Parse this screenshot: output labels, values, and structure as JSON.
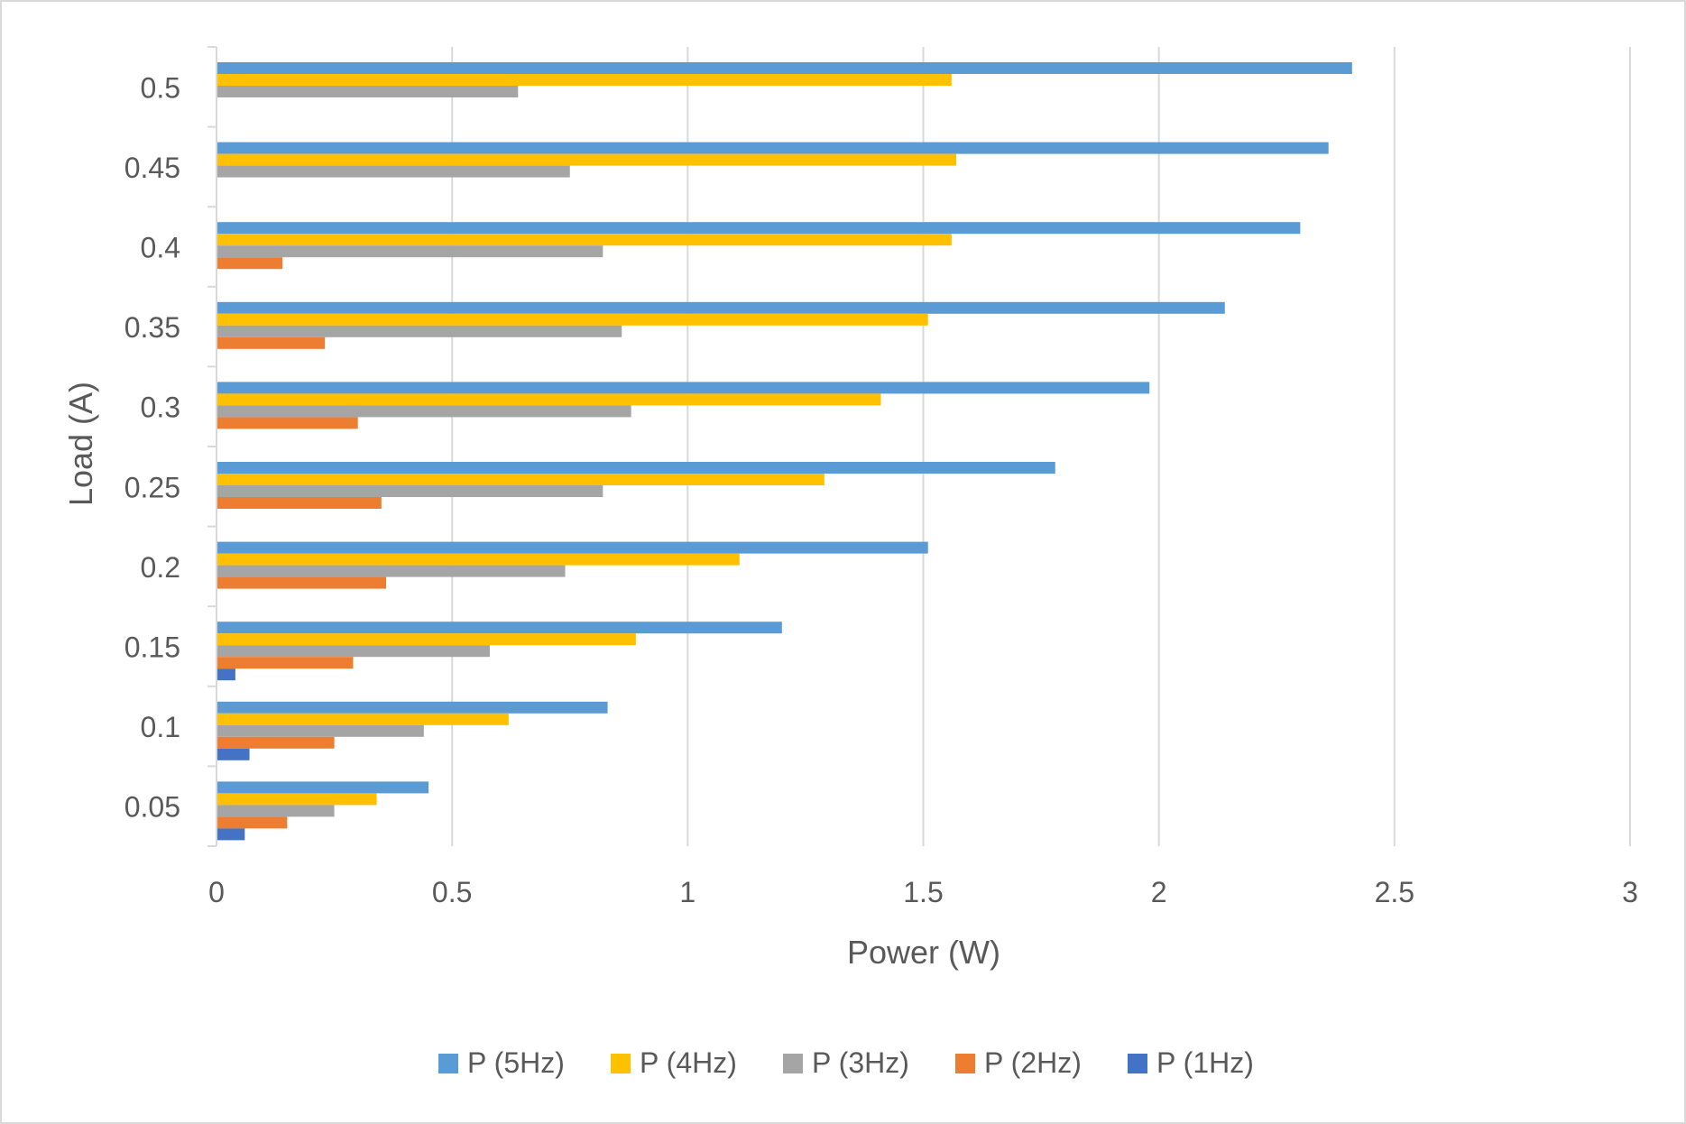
{
  "chart_data": {
    "type": "bar",
    "orientation": "horizontal",
    "title": "",
    "xlabel": "Power (W)",
    "ylabel": "Load (A)",
    "xlim": [
      0,
      3
    ],
    "x_ticks": [
      "0",
      "0.5",
      "1",
      "1.5",
      "2",
      "2.5",
      "3"
    ],
    "categories": [
      "0.05",
      "0.1",
      "0.15",
      "0.2",
      "0.25",
      "0.3",
      "0.35",
      "0.4",
      "0.45",
      "0.5"
    ],
    "grid": "vertical",
    "legend_position": "bottom",
    "series": [
      {
        "name": "P (5Hz)",
        "color": "#5b9bd5",
        "values": [
          0.45,
          0.83,
          1.2,
          1.51,
          1.78,
          1.98,
          2.14,
          2.3,
          2.36,
          2.41
        ]
      },
      {
        "name": "P (4Hz)",
        "color": "#ffc000",
        "values": [
          0.34,
          0.62,
          0.89,
          1.11,
          1.29,
          1.41,
          1.51,
          1.56,
          1.57,
          1.56
        ]
      },
      {
        "name": "P (3Hz)",
        "color": "#a5a5a5",
        "values": [
          0.25,
          0.44,
          0.58,
          0.74,
          0.82,
          0.88,
          0.86,
          0.82,
          0.75,
          0.64
        ]
      },
      {
        "name": "P (2Hz)",
        "color": "#ed7d31",
        "values": [
          0.15,
          0.25,
          0.29,
          0.36,
          0.35,
          0.3,
          0.23,
          0.14,
          0,
          0
        ]
      },
      {
        "name": "P (1Hz)",
        "color": "#4472c4",
        "values": [
          0.06,
          0.07,
          0.04,
          0,
          0,
          0,
          0,
          0,
          0,
          0
        ]
      }
    ]
  }
}
